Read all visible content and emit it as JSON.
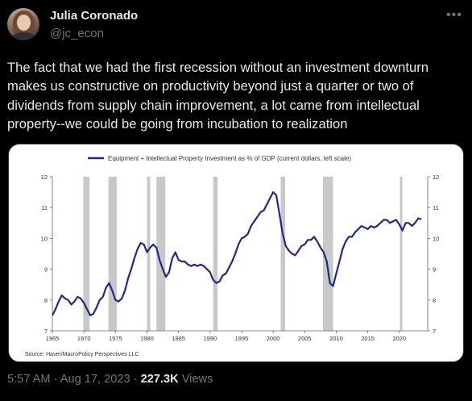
{
  "author": {
    "name": "Julia Coronado",
    "handle": "@jc_econ"
  },
  "more_icon": "more-horizontal-icon",
  "tweet": {
    "text": "The fact that we had the first recession without an investment downturn makes us constructive on productivity beyond just a quarter or two of dividends from supply chain improvement, a lot came from intellectual property--we could be going from incubation to realization"
  },
  "meta": {
    "time": "5:57 AM",
    "separator": "·",
    "date": "Aug 17, 2023",
    "views_count": "227.3K",
    "views_label": "Views"
  },
  "chart_data": {
    "type": "line",
    "legend": "Equipment + Intellectual Property Investment as % of GDP (current dollars, left scale)",
    "source": "Source: Haver/MacroPolicy Perspectives LLC",
    "line_color": "#1f2a8a",
    "recession_color": "#c8c8c8",
    "xlim": [
      1965,
      2024.5
    ],
    "ylim": [
      7,
      12
    ],
    "xticks": [
      "1965",
      "1970",
      "1975",
      "1980",
      "1985",
      "1990",
      "1995",
      "2000",
      "2005",
      "2010",
      "2015",
      "2020"
    ],
    "yticks": [
      "7",
      "8",
      "9",
      "10",
      "11",
      "12"
    ],
    "recessions": [
      [
        1969.9,
        1970.9
      ],
      [
        1973.9,
        1975.2
      ],
      [
        1980.0,
        1980.5
      ],
      [
        1981.5,
        1982.9
      ],
      [
        1990.5,
        1991.2
      ],
      [
        2001.2,
        2001.9
      ],
      [
        2007.9,
        2009.5
      ],
      [
        2020.1,
        2020.4
      ]
    ],
    "series": [
      {
        "x": [
          1965,
          1965.5,
          1966,
          1966.5,
          1967,
          1967.5,
          1968,
          1968.5,
          1969,
          1969.5,
          1970,
          1970.5,
          1971,
          1971.5,
          1972,
          1972.5,
          1973,
          1973.5,
          1974,
          1974.5,
          1975,
          1975.5,
          1976,
          1976.5,
          1977,
          1977.5,
          1978,
          1978.5,
          1979,
          1979.5,
          1980,
          1980.5,
          1981,
          1981.5,
          1982,
          1982.5,
          1983,
          1983.5,
          1984,
          1984.5,
          1985,
          1985.5,
          1986,
          1986.5,
          1987,
          1987.5,
          1988,
          1988.5,
          1989,
          1989.5,
          1990,
          1990.5,
          1991,
          1991.5,
          1992,
          1992.5,
          1993,
          1993.5,
          1994,
          1994.5,
          1995,
          1995.5,
          1996,
          1996.5,
          1997,
          1997.5,
          1998,
          1998.5,
          1999,
          1999.5,
          2000,
          2000.5,
          2001,
          2001.5,
          2002,
          2002.5,
          2003,
          2003.5,
          2004,
          2004.5,
          2005,
          2005.5,
          2006,
          2006.5,
          2007,
          2007.5,
          2008,
          2008.5,
          2009,
          2009.5,
          2010,
          2010.5,
          2011,
          2011.5,
          2012,
          2012.5,
          2013,
          2013.5,
          2014,
          2014.5,
          2015,
          2015.5,
          2016,
          2016.5,
          2017,
          2017.5,
          2018,
          2018.5,
          2019,
          2019.5,
          2020,
          2020.5,
          2021,
          2021.5,
          2022,
          2022.5,
          2023,
          2023.5
        ],
        "y": [
          7.5,
          7.7,
          7.95,
          8.15,
          8.05,
          8.0,
          7.85,
          7.95,
          8.1,
          8.05,
          7.9,
          7.7,
          7.5,
          7.55,
          7.75,
          8.0,
          8.1,
          8.4,
          8.55,
          8.3,
          8.0,
          7.95,
          8.05,
          8.3,
          8.7,
          9.0,
          9.35,
          9.65,
          9.85,
          9.8,
          9.55,
          9.7,
          9.8,
          9.7,
          9.3,
          9.0,
          8.75,
          8.9,
          9.35,
          9.55,
          9.3,
          9.25,
          9.25,
          9.15,
          9.1,
          9.15,
          9.1,
          9.15,
          9.1,
          9.0,
          8.9,
          8.65,
          8.55,
          8.6,
          8.8,
          8.85,
          9.05,
          9.25,
          9.5,
          9.8,
          10.0,
          10.05,
          10.15,
          10.4,
          10.55,
          10.7,
          10.85,
          10.9,
          11.1,
          11.3,
          11.5,
          11.4,
          10.8,
          10.15,
          9.75,
          9.6,
          9.5,
          9.45,
          9.6,
          9.75,
          9.8,
          9.95,
          9.95,
          10.05,
          9.9,
          9.7,
          9.55,
          9.25,
          8.55,
          8.45,
          8.85,
          9.25,
          9.65,
          9.9,
          10.05,
          10.05,
          10.2,
          10.3,
          10.4,
          10.35,
          10.3,
          10.4,
          10.35,
          10.4,
          10.5,
          10.6,
          10.6,
          10.5,
          10.55,
          10.6,
          10.45,
          10.25,
          10.5,
          10.5,
          10.4,
          10.5,
          10.65,
          10.62
        ]
      }
    ]
  }
}
